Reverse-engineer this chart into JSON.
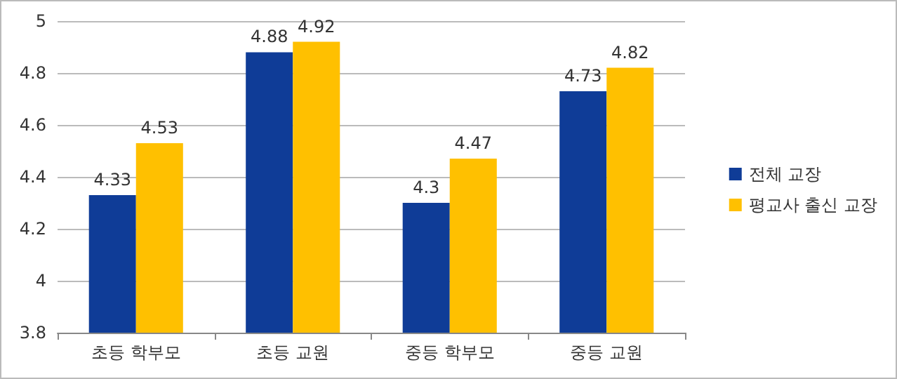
{
  "chart_data": {
    "type": "bar",
    "categories": [
      "초등 학부모",
      "초등 교원",
      "중등 학부모",
      "중등 교원"
    ],
    "series": [
      {
        "name": "전체 교장",
        "color": "#0f3c97",
        "values": [
          4.33,
          4.88,
          4.3,
          4.73
        ]
      },
      {
        "name": "평교사 출신 교장",
        "color": "#ffc000",
        "values": [
          4.53,
          4.92,
          4.47,
          4.82
        ]
      }
    ],
    "ylim": [
      3.8,
      5
    ],
    "yticks": [
      3.8,
      4,
      4.2,
      4.4,
      4.6,
      4.8,
      5
    ],
    "grid": "y",
    "legend": "right",
    "data_labels": true
  }
}
